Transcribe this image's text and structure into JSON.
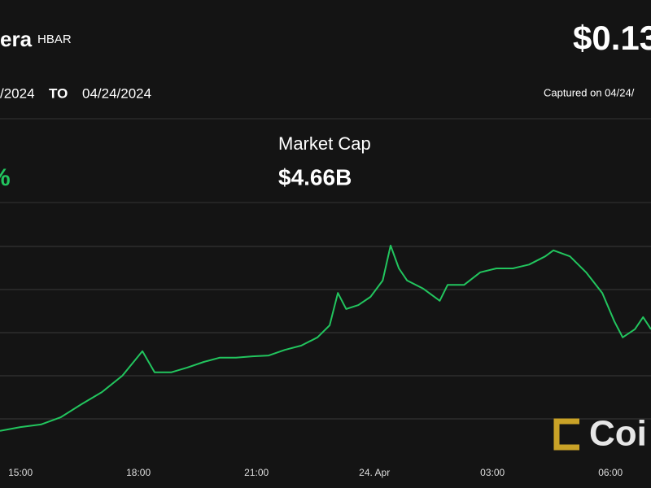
{
  "header": {
    "name": "era",
    "symbol": "HBAR",
    "price": "$0.13",
    "from": "/2024",
    "to_label": "TO",
    "to": "04/24/2024",
    "captured": "Captured on 04/24/"
  },
  "stats": {
    "change": "%",
    "market_cap_label": "Market Cap",
    "market_cap": "$4.66B"
  },
  "logo": "Coi",
  "chart_data": {
    "type": "line",
    "color": "#22c55e",
    "grid": true,
    "x": [
      14.48,
      15,
      15.52,
      16.03,
      16.55,
      17.07,
      17.59,
      18.1,
      18.41,
      18.83,
      19.24,
      19.66,
      20.07,
      20.48,
      20.9,
      21.31,
      21.72,
      22.14,
      22.55,
      22.86,
      23.07,
      23.28,
      23.59,
      23.9,
      24.21,
      24.41,
      24.62,
      24.83,
      25.24,
      25.66,
      25.86,
      26.28,
      26.69,
      27.1,
      27.52,
      27.93,
      28.34,
      28.55,
      28.97,
      29.38,
      29.79,
      30.1,
      30.31,
      30.62,
      30.83,
      31.03
    ],
    "values": [
      0.72,
      0.81,
      0.87,
      1.04,
      1.34,
      1.62,
      2.0,
      2.57,
      2.08,
      2.08,
      2.19,
      2.32,
      2.42,
      2.42,
      2.45,
      2.47,
      2.6,
      2.7,
      2.89,
      3.17,
      3.92,
      3.55,
      3.64,
      3.83,
      4.21,
      5.02,
      4.49,
      4.21,
      4.02,
      3.74,
      4.11,
      4.11,
      4.4,
      4.49,
      4.49,
      4.58,
      4.77,
      4.91,
      4.77,
      4.4,
      3.92,
      3.26,
      2.89,
      3.08,
      3.36,
      3.08
    ],
    "xlim": [
      14.48,
      31.03
    ],
    "ylim": [
      0,
      6
    ],
    "xticks": [
      {
        "value": 15,
        "label": "15:00"
      },
      {
        "value": 18,
        "label": "18:00"
      },
      {
        "value": 21,
        "label": "21:00"
      },
      {
        "value": 24,
        "label": "24. Apr"
      },
      {
        "value": 27,
        "label": "03:00"
      },
      {
        "value": 30,
        "label": "06:00"
      }
    ],
    "yticks": [
      1,
      2,
      3,
      4,
      5
    ]
  }
}
